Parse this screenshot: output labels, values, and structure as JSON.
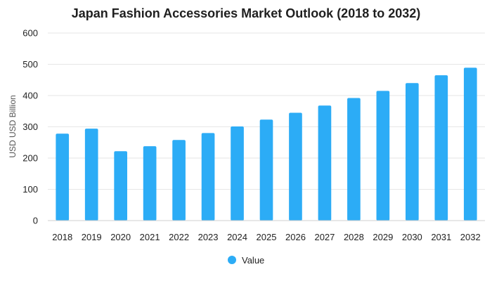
{
  "chart_data": {
    "type": "bar",
    "title": "Japan Fashion Accessories Market Outlook (2018 to 2032)",
    "xlabel": "",
    "ylabel": "USD USD Billion",
    "categories": [
      "2018",
      "2019",
      "2020",
      "2021",
      "2022",
      "2023",
      "2024",
      "2025",
      "2026",
      "2027",
      "2028",
      "2029",
      "2030",
      "2031",
      "2032"
    ],
    "series": [
      {
        "name": "Value",
        "values": [
          278,
          294,
          222,
          238,
          258,
          280,
          301,
          323,
          345,
          368,
          392,
          415,
          440,
          465,
          489
        ]
      }
    ],
    "ylim": [
      0,
      600
    ],
    "yticks": [
      0,
      100,
      200,
      300,
      400,
      500,
      600
    ],
    "grid": true,
    "legend": "bottom-center",
    "bar_color": "#2CACF6"
  }
}
